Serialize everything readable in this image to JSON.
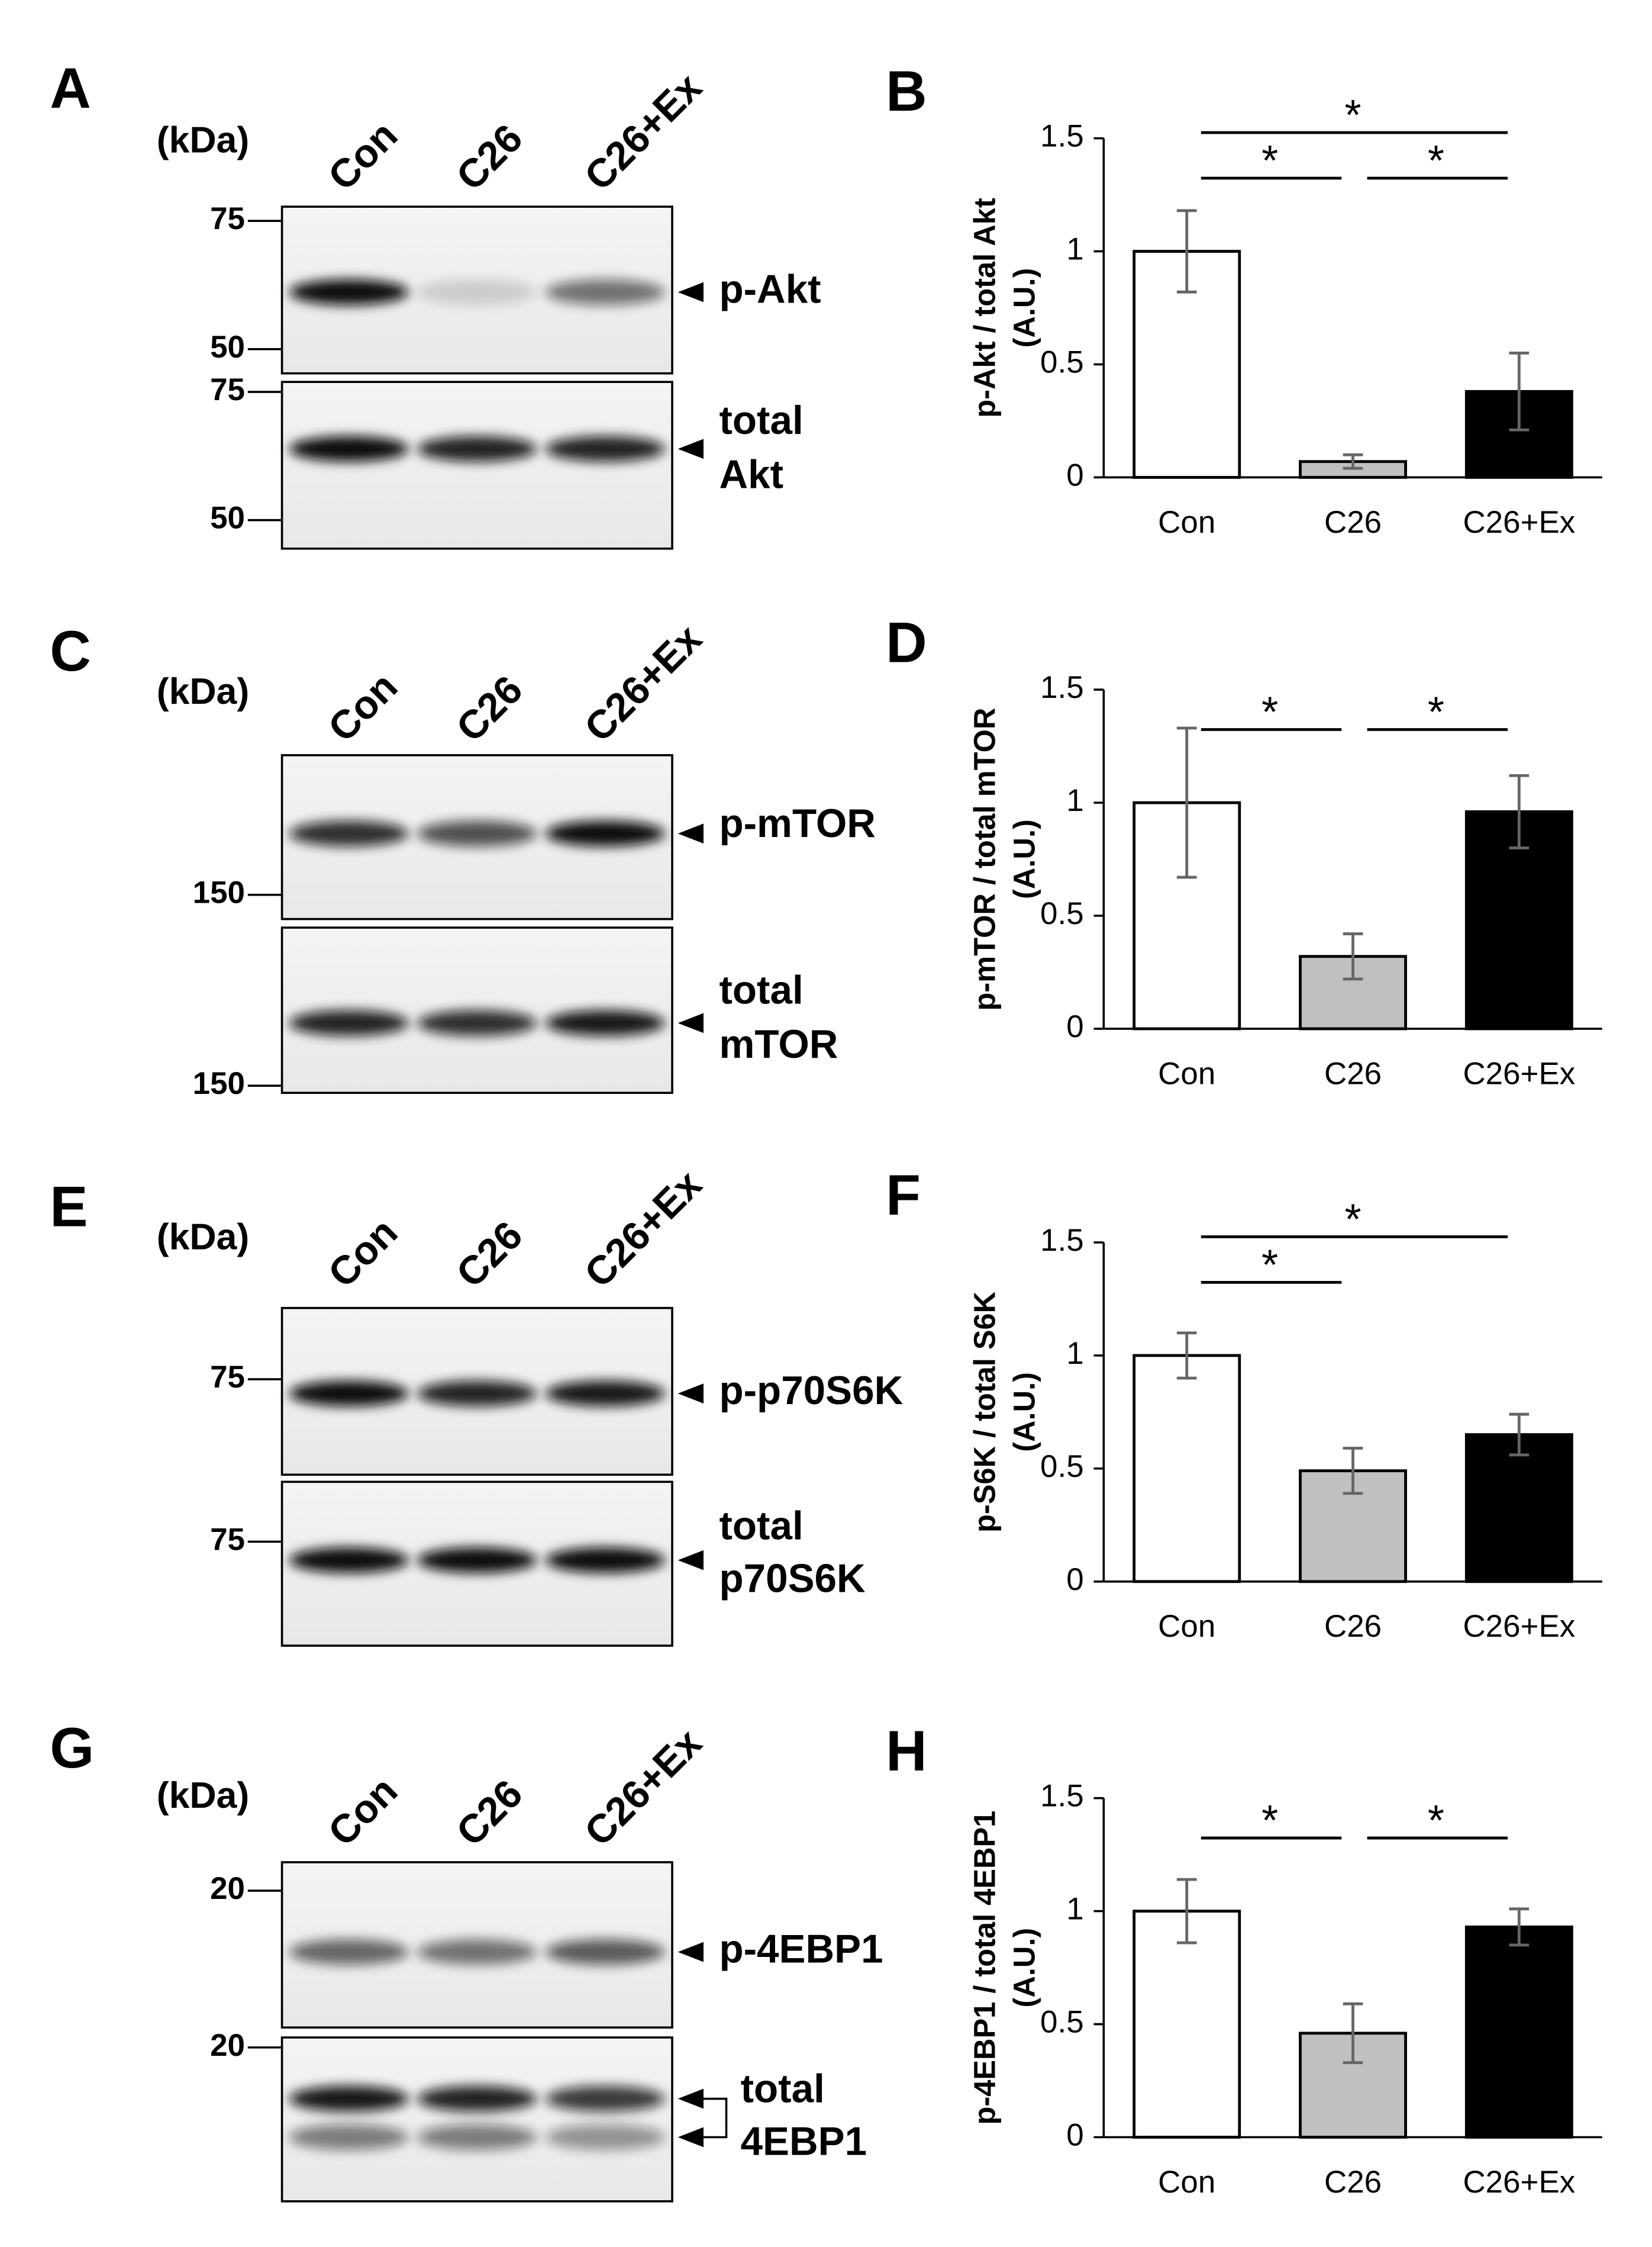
{
  "chart_data": [
    {
      "type": "bar",
      "panel": "B",
      "ylabel": [
        "p-Akt / total Akt",
        "(A.U.)"
      ],
      "categories": [
        "Con",
        "C26",
        "C26+Ex"
      ],
      "values": [
        1,
        0.07,
        0.38
      ],
      "errors": [
        0.18,
        0.03,
        0.17
      ],
      "colors": [
        "#ffffff",
        "#c0c0c0",
        "#000000"
      ],
      "ylim": [
        0,
        1.5
      ],
      "yticks": [
        0,
        0.5,
        1,
        1.5
      ],
      "significance": [
        {
          "pair": [
            "Con",
            "C26"
          ],
          "label": "*"
        },
        {
          "pair": [
            "C26",
            "C26+Ex"
          ],
          "label": "*"
        },
        {
          "pair": [
            "Con",
            "C26+Ex"
          ],
          "label": "*"
        }
      ]
    },
    {
      "type": "bar",
      "panel": "D",
      "ylabel": [
        "p-mTOR / total mTOR",
        "(A.U.)"
      ],
      "categories": [
        "Con",
        "C26",
        "C26+Ex"
      ],
      "values": [
        1,
        0.32,
        0.96
      ],
      "errors": [
        0.33,
        0.1,
        0.16
      ],
      "colors": [
        "#ffffff",
        "#c0c0c0",
        "#000000"
      ],
      "ylim": [
        0,
        1.5
      ],
      "yticks": [
        0,
        0.5,
        1,
        1.5
      ],
      "significance": [
        {
          "pair": [
            "Con",
            "C26"
          ],
          "label": "*"
        },
        {
          "pair": [
            "C26",
            "C26+Ex"
          ],
          "label": "*"
        }
      ]
    },
    {
      "type": "bar",
      "panel": "F",
      "ylabel": [
        "p-S6K / total S6K",
        "(A.U.)"
      ],
      "categories": [
        "Con",
        "C26",
        "C26+Ex"
      ],
      "values": [
        1,
        0.49,
        0.65
      ],
      "errors": [
        0.1,
        0.1,
        0.09
      ],
      "colors": [
        "#ffffff",
        "#c0c0c0",
        "#000000"
      ],
      "ylim": [
        0,
        1.5
      ],
      "yticks": [
        0,
        0.5,
        1,
        1.5
      ],
      "significance": [
        {
          "pair": [
            "Con",
            "C26"
          ],
          "label": "*"
        },
        {
          "pair": [
            "Con",
            "C26+Ex"
          ],
          "label": "*"
        }
      ]
    },
    {
      "type": "bar",
      "panel": "H",
      "ylabel": [
        "p-4EBP1 / total 4EBP1",
        "(A.U.)"
      ],
      "categories": [
        "Con",
        "C26",
        "C26+Ex"
      ],
      "values": [
        1,
        0.46,
        0.93
      ],
      "errors": [
        0.14,
        0.13,
        0.08
      ],
      "colors": [
        "#ffffff",
        "#c0c0c0",
        "#000000"
      ],
      "ylim": [
        0,
        1.5
      ],
      "yticks": [
        0,
        0.5,
        1,
        1.5
      ],
      "significance": [
        {
          "pair": [
            "Con",
            "C26"
          ],
          "label": "*"
        },
        {
          "pair": [
            "C26",
            "C26+Ex"
          ],
          "label": "*"
        }
      ]
    }
  ],
  "blots": [
    {
      "panel": "A",
      "unit": "(kDa)",
      "lanes": [
        "Con",
        "C26",
        "C26+Ex"
      ],
      "rows": [
        {
          "markers": [
            75,
            50
          ],
          "label": [
            "p-Akt"
          ]
        },
        {
          "markers": [
            75,
            50
          ],
          "label": [
            "total",
            "Akt"
          ]
        }
      ]
    },
    {
      "panel": "C",
      "unit": "(kDa)",
      "lanes": [
        "Con",
        "C26",
        "C26+Ex"
      ],
      "rows": [
        {
          "markers": [
            150
          ],
          "label": [
            "p-mTOR"
          ]
        },
        {
          "markers": [
            150
          ],
          "label": [
            "total",
            "mTOR"
          ]
        }
      ]
    },
    {
      "panel": "E",
      "unit": "(kDa)",
      "lanes": [
        "Con",
        "C26",
        "C26+Ex"
      ],
      "rows": [
        {
          "markers": [
            75
          ],
          "label": [
            "p-p70S6K"
          ]
        },
        {
          "markers": [
            75
          ],
          "label": [
            "total",
            "p70S6K"
          ]
        }
      ]
    },
    {
      "panel": "G",
      "unit": "(kDa)",
      "lanes": [
        "Con",
        "C26",
        "C26+Ex"
      ],
      "rows": [
        {
          "markers": [
            20
          ],
          "label": [
            "p-4EBP1"
          ]
        },
        {
          "markers": [
            20
          ],
          "label": [
            "total",
            "4EBP1"
          ]
        }
      ]
    }
  ]
}
